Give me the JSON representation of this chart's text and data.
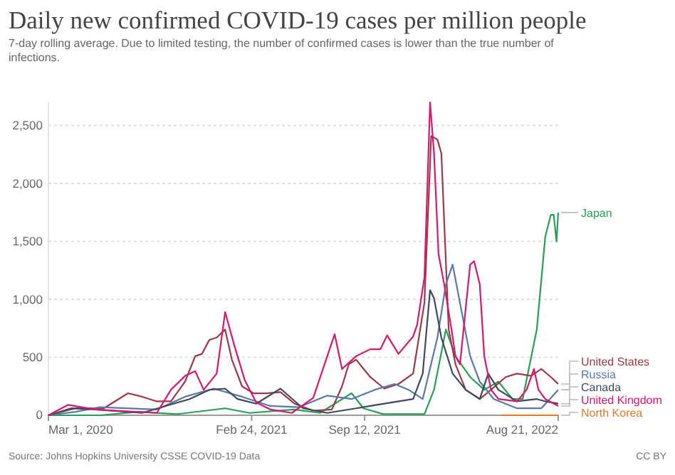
{
  "chart_data": {
    "type": "line",
    "title": "Daily new confirmed COVID-19 cases per million people",
    "subtitle": "7-day rolling average. Due to limited testing, the number of confirmed cases is lower than the true number of infections.",
    "annotations": [
      "Source: Johns Hopkins University CSSE COVID-19 Data",
      "CC BY"
    ],
    "xlim": [
      "2020-03-01",
      "2022-08-21"
    ],
    "xticks": [
      {
        "value": "2020-03-01",
        "label": "Mar 1, 2020"
      },
      {
        "value": "2021-02-24",
        "label": "Feb 24, 2021"
      },
      {
        "value": "2021-09-12",
        "label": "Sep 12, 2021"
      },
      {
        "value": "2022-08-21",
        "label": "Aug 21, 2022"
      }
    ],
    "ylim": [
      0,
      2700
    ],
    "yticks": [
      0,
      {
        "value": 500,
        "label": "500"
      },
      {
        "value": 1000,
        "label": "1,000"
      },
      {
        "value": 1500,
        "label": "1,500"
      },
      {
        "value": 2000,
        "label": "2,000"
      },
      {
        "value": 2500,
        "label": "2,500"
      }
    ],
    "grid": "y",
    "legend": "right",
    "line_style": "solid",
    "marker": "none",
    "series": [
      {
        "name": "Japan",
        "color": "#2a9d56",
        "x": [
          "2020-03-01",
          "2020-06-01",
          "2020-08-08",
          "2020-10-15",
          "2021-01-08",
          "2021-02-20",
          "2021-05-10",
          "2021-06-25",
          "2021-08-20",
          "2021-09-10",
          "2021-10-15",
          "2021-12-27",
          "2022-01-13",
          "2022-02-03",
          "2022-02-20",
          "2022-03-18",
          "2022-04-12",
          "2022-05-07",
          "2022-06-01",
          "2022-06-19",
          "2022-07-14",
          "2022-07-29",
          "2022-08-08",
          "2022-08-13",
          "2022-08-18",
          "2022-08-21"
        ],
        "values": [
          0,
          0,
          30,
          10,
          60,
          20,
          50,
          20,
          190,
          60,
          10,
          10,
          220,
          740,
          510,
          330,
          220,
          290,
          140,
          140,
          740,
          1540,
          1730,
          1730,
          1500,
          1750
        ]
      },
      {
        "name": "United States",
        "color": "#9a3a48",
        "x": [
          "2020-03-01",
          "2020-03-24",
          "2020-04-18",
          "2020-06-07",
          "2020-07-20",
          "2020-08-14",
          "2020-09-09",
          "2020-10-04",
          "2020-10-29",
          "2020-11-16",
          "2020-11-28",
          "2020-12-11",
          "2020-12-24",
          "2021-01-08",
          "2021-01-20",
          "2021-02-07",
          "2021-02-27",
          "2021-03-22",
          "2021-04-16",
          "2021-05-11",
          "2021-06-13",
          "2021-07-16",
          "2021-08-03",
          "2021-08-15",
          "2021-08-28",
          "2021-09-22",
          "2021-10-17",
          "2021-11-11",
          "2021-12-07",
          "2021-12-27",
          "2022-01-08",
          "2022-01-19",
          "2022-01-26",
          "2022-02-08",
          "2022-02-20",
          "2022-03-10",
          "2022-04-04",
          "2022-04-24",
          "2022-05-20",
          "2022-06-09",
          "2022-07-04",
          "2022-07-22",
          "2022-08-08",
          "2022-08-21"
        ],
        "values": [
          0,
          30,
          60,
          60,
          190,
          160,
          120,
          120,
          290,
          510,
          530,
          650,
          670,
          740,
          480,
          250,
          190,
          190,
          200,
          100,
          40,
          50,
          250,
          440,
          480,
          330,
          230,
          270,
          360,
          970,
          2410,
          2380,
          2260,
          740,
          440,
          220,
          140,
          220,
          330,
          360,
          340,
          400,
          330,
          270
        ]
      },
      {
        "name": "Russia",
        "color": "#5a78a8",
        "x": [
          "2020-03-01",
          "2020-04-18",
          "2020-05-31",
          "2020-09-09",
          "2020-10-29",
          "2020-12-19",
          "2021-02-07",
          "2021-03-29",
          "2021-05-19",
          "2021-07-08",
          "2021-08-20",
          "2021-09-30",
          "2021-11-04",
          "2021-11-29",
          "2021-12-24",
          "2022-01-19",
          "2022-02-03",
          "2022-02-15",
          "2022-02-28",
          "2022-03-18",
          "2022-04-04",
          "2022-04-29",
          "2022-06-09",
          "2022-07-22",
          "2022-08-21"
        ],
        "values": [
          0,
          30,
          70,
          50,
          160,
          230,
          160,
          80,
          70,
          170,
          140,
          220,
          270,
          220,
          140,
          670,
          1130,
          1300,
          970,
          510,
          290,
          140,
          60,
          60,
          220
        ]
      },
      {
        "name": "Canada",
        "color": "#3f4a5e",
        "x": [
          "2020-03-01",
          "2020-04-10",
          "2020-05-23",
          "2020-08-14",
          "2020-11-06",
          "2020-12-11",
          "2021-01-08",
          "2021-01-30",
          "2021-03-04",
          "2021-04-16",
          "2021-05-26",
          "2021-07-08",
          "2021-08-28",
          "2021-10-17",
          "2021-12-07",
          "2021-12-24",
          "2022-01-06",
          "2022-01-13",
          "2022-01-26",
          "2022-02-15",
          "2022-03-10",
          "2022-04-04",
          "2022-04-19",
          "2022-05-07",
          "2022-06-09",
          "2022-07-14",
          "2022-07-29",
          "2022-08-21"
        ],
        "values": [
          0,
          60,
          50,
          20,
          140,
          220,
          230,
          140,
          100,
          230,
          60,
          20,
          60,
          100,
          140,
          360,
          1080,
          1010,
          670,
          360,
          220,
          140,
          360,
          220,
          120,
          140,
          120,
          100
        ]
      },
      {
        "name": "United Kingdom",
        "color": "#d6186b",
        "x": [
          "2020-03-01",
          "2020-04-05",
          "2020-05-23",
          "2020-09-09",
          "2020-10-04",
          "2020-10-29",
          "2020-11-16",
          "2020-12-01",
          "2020-12-24",
          "2021-01-08",
          "2021-01-25",
          "2021-02-12",
          "2021-03-04",
          "2021-03-29",
          "2021-05-06",
          "2021-06-13",
          "2021-07-21",
          "2021-08-03",
          "2021-08-28",
          "2021-09-22",
          "2021-10-10",
          "2021-10-22",
          "2021-11-11",
          "2021-12-07",
          "2021-12-14",
          "2021-12-27",
          "2022-01-06",
          "2022-01-13",
          "2022-01-21",
          "2022-01-31",
          "2022-02-13",
          "2022-02-20",
          "2022-02-28",
          "2022-03-18",
          "2022-03-25",
          "2022-04-04",
          "2022-04-12",
          "2022-04-24",
          "2022-05-07",
          "2022-06-09",
          "2022-06-26",
          "2022-07-09",
          "2022-07-17",
          "2022-07-29",
          "2022-08-21"
        ],
        "values": [
          0,
          90,
          50,
          20,
          220,
          340,
          380,
          220,
          360,
          890,
          590,
          300,
          110,
          50,
          20,
          150,
          700,
          400,
          510,
          570,
          570,
          690,
          530,
          680,
          780,
          1190,
          2700,
          2260,
          1390,
          1130,
          740,
          510,
          440,
          1300,
          1330,
          1130,
          510,
          220,
          140,
          120,
          220,
          400,
          220,
          140,
          80
        ]
      },
      {
        "name": "North Korea",
        "color": "#e07b2a",
        "x": [
          "2022-05-13",
          "2022-08-21"
        ],
        "values": [
          0,
          0
        ]
      }
    ]
  }
}
